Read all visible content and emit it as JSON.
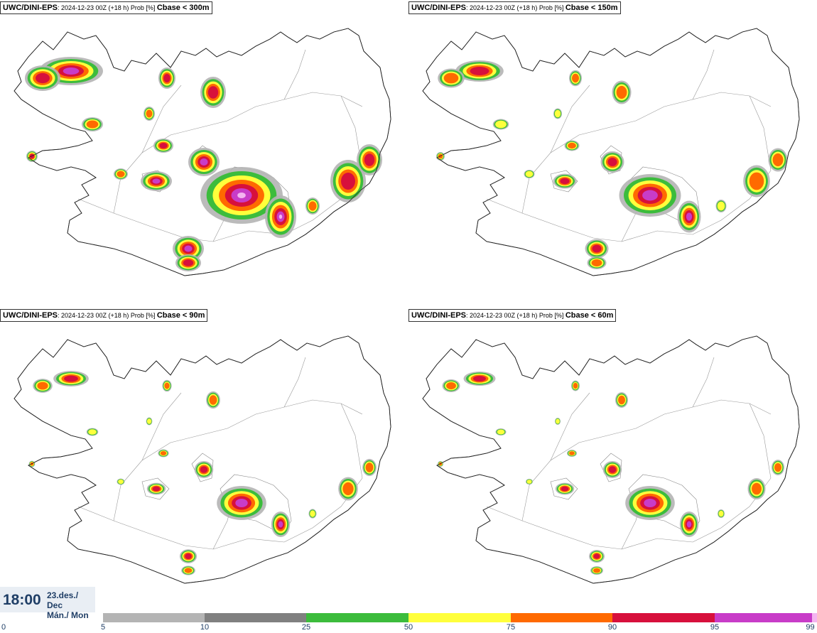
{
  "panels": [
    {
      "model": "UWC/DINI-EPS",
      "meta": ": 2024-12-23 00Z (+18 h) Prob [%] ",
      "variable": "Cbase < 300m",
      "intensity": 1.0
    },
    {
      "model": "UWC/DINI-EPS",
      "meta": ": 2024-12-23 00Z (+18 h) Prob [%] ",
      "variable": "Cbase < 150m",
      "intensity": 0.75
    },
    {
      "model": "UWC/DINI-EPS",
      "meta": ": 2024-12-23 00Z (+18 h) Prob [%] ",
      "variable": "Cbase < 90m",
      "intensity": 0.55
    },
    {
      "model": "UWC/DINI-EPS",
      "meta": ": 2024-12-23 00Z (+18 h) Prob [%] ",
      "variable": "Cbase < 60m",
      "intensity": 0.5
    }
  ],
  "valid_time": {
    "time": "18:00",
    "date_line1": "23.des./ Dec",
    "date_line2": "Mán./ Mon"
  },
  "legend": {
    "ticks": [
      "0",
      "5",
      "10",
      "25",
      "50",
      "75",
      "90",
      "95",
      "99"
    ],
    "colors": [
      "#b4b4b4",
      "#808080",
      "#3cbc3c",
      "#ffff3c",
      "#ff6a00",
      "#d7103c",
      "#c83cc8",
      "#f4b4f0"
    ]
  }
}
